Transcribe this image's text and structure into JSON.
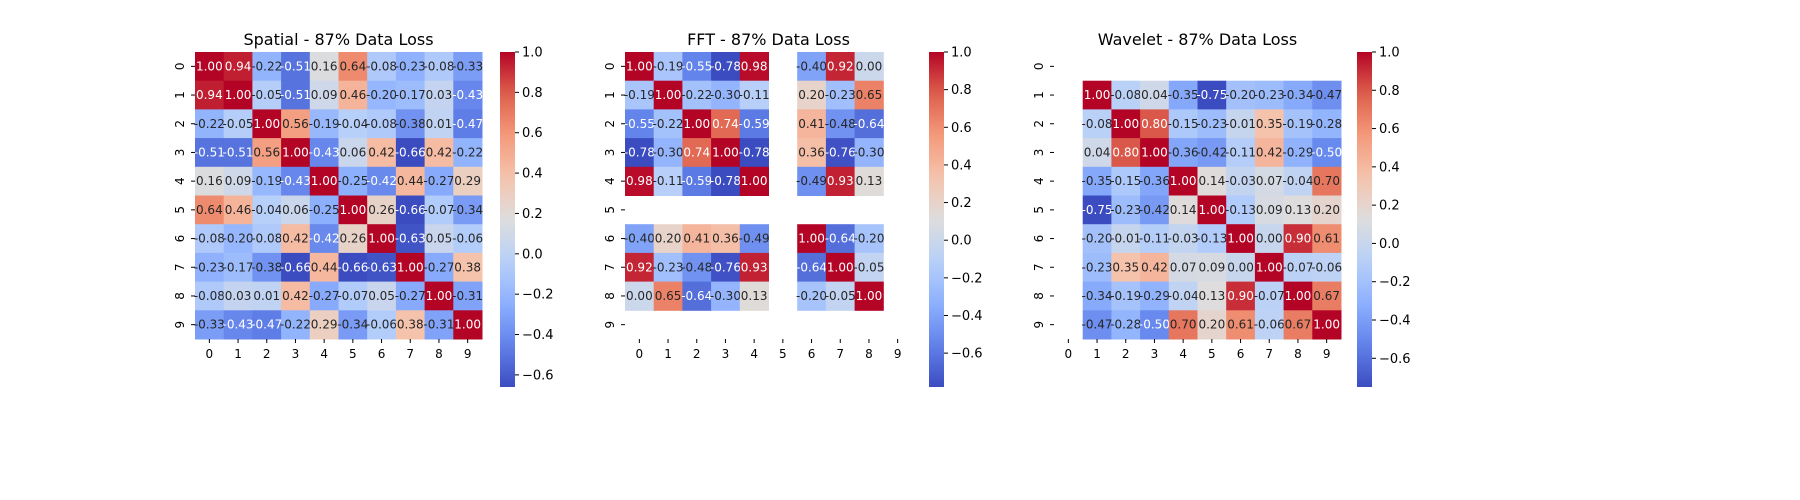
{
  "chart_data": [
    {
      "type": "heatmap",
      "title": "Spatial - 87% Data Loss",
      "x_ticks": [
        "0",
        "1",
        "2",
        "3",
        "4",
        "5",
        "6",
        "7",
        "8",
        "9"
      ],
      "y_ticks": [
        "0",
        "1",
        "2",
        "3",
        "4",
        "5",
        "6",
        "7",
        "8",
        "9"
      ],
      "values": [
        [
          1.0,
          0.94,
          -0.22,
          -0.51,
          0.16,
          0.64,
          -0.08,
          -0.23,
          -0.08,
          -0.33
        ],
        [
          0.94,
          1.0,
          -0.05,
          -0.51,
          0.09,
          0.46,
          -0.2,
          -0.17,
          0.03,
          -0.43
        ],
        [
          -0.22,
          -0.05,
          1.0,
          0.56,
          -0.19,
          -0.04,
          -0.08,
          -0.38,
          0.01,
          -0.47
        ],
        [
          -0.51,
          -0.51,
          0.56,
          1.0,
          -0.43,
          0.06,
          0.42,
          -0.66,
          0.42,
          -0.22
        ],
        [
          0.16,
          0.09,
          -0.19,
          -0.43,
          1.0,
          -0.25,
          -0.42,
          0.44,
          -0.27,
          0.29
        ],
        [
          0.64,
          0.46,
          -0.04,
          0.06,
          -0.25,
          1.0,
          0.26,
          -0.66,
          -0.07,
          -0.34
        ],
        [
          -0.08,
          -0.2,
          -0.08,
          0.42,
          -0.42,
          0.26,
          1.0,
          -0.63,
          0.05,
          -0.06
        ],
        [
          -0.23,
          -0.17,
          -0.38,
          -0.66,
          0.44,
          -0.66,
          -0.63,
          1.0,
          -0.27,
          0.38
        ],
        [
          -0.08,
          0.03,
          0.01,
          0.42,
          -0.27,
          -0.07,
          0.05,
          -0.27,
          1.0,
          -0.31
        ],
        [
          -0.33,
          -0.43,
          -0.47,
          -0.22,
          0.29,
          -0.34,
          -0.06,
          0.38,
          -0.31,
          1.0
        ]
      ],
      "vmin": -0.66,
      "vmax": 1.0,
      "colorbar_ticks": [
        "1.0",
        "0.8",
        "0.6",
        "0.4",
        "0.2",
        "0.0",
        "−0.2",
        "−0.4",
        "−0.6"
      ],
      "colormap": "coolwarm"
    },
    {
      "type": "heatmap",
      "title": "FFT - 87% Data Loss",
      "x_ticks": [
        "0",
        "1",
        "2",
        "3",
        "4",
        "5",
        "6",
        "7",
        "8",
        "9"
      ],
      "y_ticks": [
        "0",
        "1",
        "2",
        "3",
        "4",
        "5",
        "6",
        "7",
        "8",
        "9"
      ],
      "values": [
        [
          1.0,
          -0.19,
          -0.55,
          -0.78,
          0.98,
          null,
          -0.4,
          0.92,
          0.0,
          null
        ],
        [
          -0.19,
          1.0,
          -0.22,
          -0.3,
          -0.11,
          null,
          0.2,
          -0.23,
          0.65,
          null
        ],
        [
          -0.55,
          -0.22,
          1.0,
          0.74,
          -0.59,
          null,
          0.41,
          -0.48,
          -0.64,
          null
        ],
        [
          -0.78,
          -0.3,
          0.74,
          1.0,
          -0.78,
          null,
          0.36,
          -0.76,
          -0.3,
          null
        ],
        [
          0.98,
          -0.11,
          -0.59,
          -0.78,
          1.0,
          null,
          -0.49,
          0.93,
          0.13,
          null
        ],
        [
          null,
          null,
          null,
          null,
          null,
          null,
          null,
          null,
          null,
          null
        ],
        [
          -0.4,
          0.2,
          0.41,
          0.36,
          -0.49,
          null,
          1.0,
          -0.64,
          -0.2,
          null
        ],
        [
          0.92,
          -0.23,
          -0.48,
          -0.76,
          0.93,
          null,
          -0.64,
          1.0,
          -0.05,
          null
        ],
        [
          0.0,
          0.65,
          -0.64,
          -0.3,
          0.13,
          null,
          -0.2,
          -0.05,
          1.0,
          null
        ],
        [
          null,
          null,
          null,
          null,
          null,
          null,
          null,
          null,
          null,
          null
        ]
      ],
      "vmin": -0.78,
      "vmax": 1.0,
      "colorbar_ticks": [
        "1.0",
        "0.8",
        "0.6",
        "0.4",
        "0.2",
        "0.0",
        "−0.2",
        "−0.4",
        "−0.6"
      ],
      "colormap": "coolwarm"
    },
    {
      "type": "heatmap",
      "title": "Wavelet - 87% Data Loss",
      "x_ticks": [
        "0",
        "1",
        "2",
        "3",
        "4",
        "5",
        "6",
        "7",
        "8",
        "9"
      ],
      "y_ticks": [
        "0",
        "1",
        "2",
        "3",
        "4",
        "5",
        "6",
        "7",
        "8",
        "9"
      ],
      "values": [
        [
          null,
          null,
          null,
          null,
          null,
          null,
          null,
          null,
          null,
          null
        ],
        [
          null,
          1.0,
          -0.08,
          0.04,
          -0.35,
          -0.75,
          -0.2,
          -0.23,
          -0.34,
          -0.47
        ],
        [
          null,
          -0.08,
          1.0,
          0.8,
          -0.15,
          -0.23,
          -0.01,
          0.35,
          -0.19,
          -0.28
        ],
        [
          null,
          0.04,
          0.8,
          1.0,
          -0.36,
          -0.42,
          -0.11,
          0.42,
          -0.29,
          -0.5
        ],
        [
          null,
          -0.35,
          -0.15,
          -0.36,
          1.0,
          0.14,
          -0.03,
          0.07,
          -0.04,
          0.7
        ],
        [
          null,
          -0.75,
          -0.23,
          -0.42,
          0.14,
          1.0,
          -0.13,
          0.09,
          0.13,
          0.2
        ],
        [
          null,
          -0.2,
          -0.01,
          -0.11,
          -0.03,
          -0.13,
          1.0,
          0.0,
          0.9,
          0.61
        ],
        [
          null,
          -0.23,
          0.35,
          0.42,
          0.07,
          0.09,
          0.0,
          1.0,
          -0.07,
          -0.06
        ],
        [
          null,
          -0.34,
          -0.19,
          -0.29,
          -0.04,
          0.13,
          0.9,
          -0.07,
          1.0,
          0.67
        ],
        [
          null,
          -0.47,
          -0.28,
          -0.5,
          0.7,
          0.2,
          0.61,
          -0.06,
          0.67,
          1.0
        ]
      ],
      "vmin": -0.75,
      "vmax": 1.0,
      "colorbar_ticks": [
        "1.0",
        "0.8",
        "0.6",
        "0.4",
        "0.2",
        "0.0",
        "−0.2",
        "−0.4",
        "−0.6"
      ],
      "colormap": "coolwarm"
    }
  ]
}
